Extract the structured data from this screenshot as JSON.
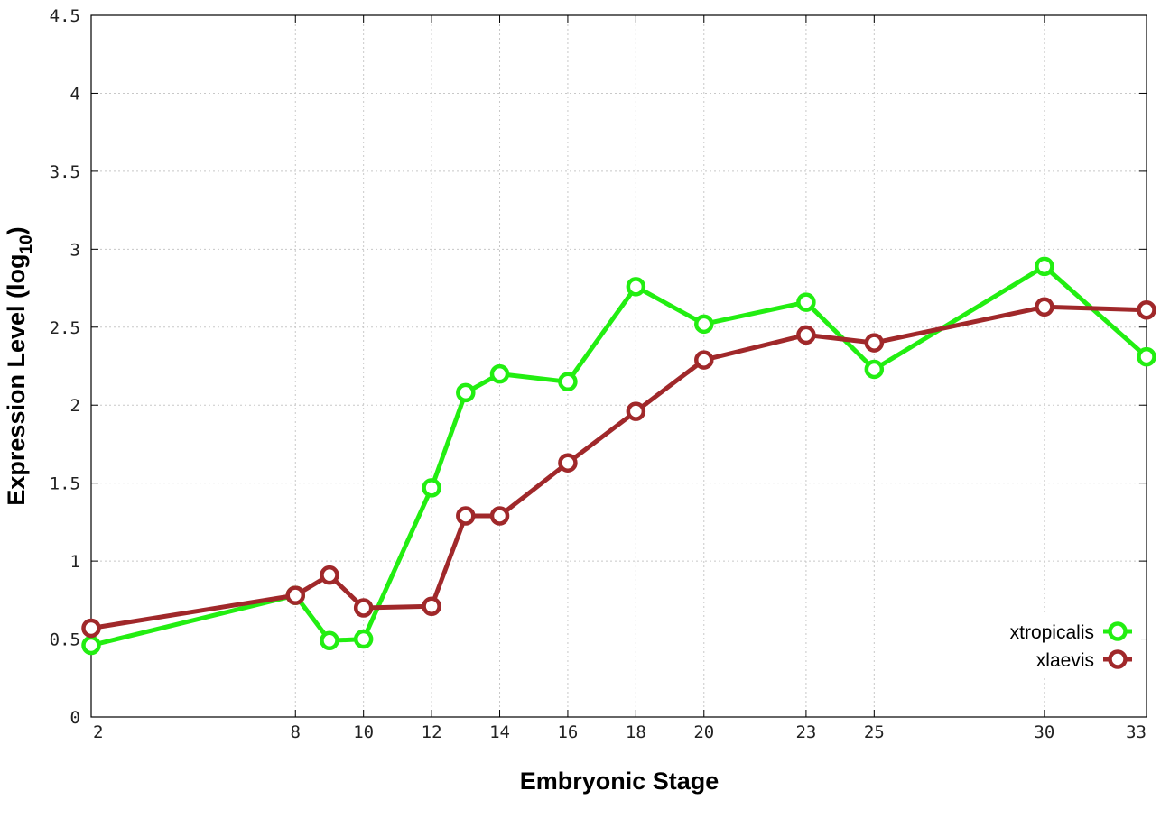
{
  "chart_data": {
    "type": "line",
    "xlabel": "Embryonic Stage",
    "ylabel_main": "Expression Level (log",
    "ylabel_sub": "10",
    "ylabel_close": ")",
    "xlim": [
      2,
      33
    ],
    "ylim": [
      0,
      4.5
    ],
    "x_ticks": [
      2,
      8,
      10,
      12,
      14,
      16,
      18,
      20,
      23,
      25,
      30,
      33
    ],
    "x_tick_labels": [
      "2",
      "8",
      "10",
      "12",
      "14",
      "16",
      "18",
      "20",
      "23",
      "25",
      "30",
      "33"
    ],
    "y_ticks": [
      0,
      0.5,
      1,
      1.5,
      2,
      2.5,
      3,
      3.5,
      4,
      4.5
    ],
    "y_tick_labels": [
      "0",
      "0.5",
      "1",
      "1.5",
      "2",
      "2.5",
      "3",
      "3.5",
      "4",
      "4.5"
    ],
    "grid": true,
    "legend_position": "bottom-right",
    "series": [
      {
        "name": "xtropicalis",
        "color": "#22ee11",
        "x": [
          2,
          8,
          9,
          10,
          12,
          13,
          14,
          16,
          18,
          20,
          23,
          25,
          30,
          33
        ],
        "y": [
          0.46,
          0.78,
          0.49,
          0.5,
          1.47,
          2.08,
          2.2,
          2.15,
          2.76,
          2.52,
          2.66,
          2.23,
          2.89,
          2.31
        ]
      },
      {
        "name": "xlaevis",
        "color": "#a0282a",
        "x": [
          2,
          8,
          9,
          10,
          12,
          13,
          14,
          16,
          18,
          20,
          23,
          25,
          30,
          33
        ],
        "y": [
          0.57,
          0.78,
          0.91,
          0.7,
          0.71,
          1.29,
          1.29,
          1.63,
          1.96,
          2.29,
          2.45,
          2.4,
          2.63,
          2.61
        ]
      }
    ]
  }
}
